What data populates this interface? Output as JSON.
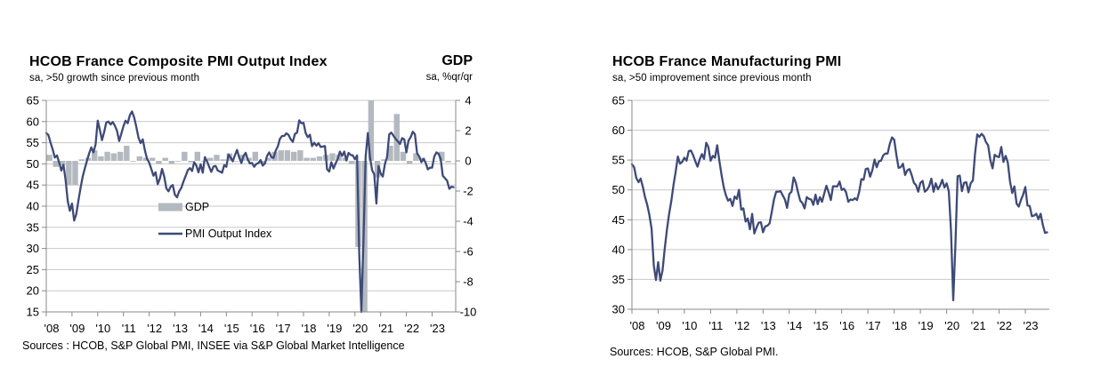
{
  "colors": {
    "line": "#3E4A77",
    "bar": "#B3B9BF",
    "grid": "#C8C8C8",
    "axis": "#898989",
    "text": "#000000",
    "background": "#FFFFFF"
  },
  "charts": [
    {
      "title": "HCOB France Composite PMI Output Index",
      "subtitle": "sa, >50 growth since previous month",
      "right_axis_title": "GDP",
      "right_axis_subtitle": "sa, %qr/qr",
      "sources": "Sources : HCOB, S&P Global PMI, INSEE via S&P Global Market Intelligence",
      "legend": [
        {
          "label": "GDP",
          "swatch": "bar"
        },
        {
          "label": "PMI Output Index",
          "swatch": "line"
        }
      ],
      "chart_data": {
        "type": "line+bar",
        "x_start": "2008-01",
        "x_end": "2023-11",
        "x_tick_labels": [
          "'08",
          "'09",
          "'10",
          "'11",
          "'12",
          "'13",
          "'14",
          "'15",
          "'16",
          "'17",
          "'18",
          "'19",
          "'20",
          "'21",
          "'22",
          "'23"
        ],
        "left_axis": {
          "min": 15,
          "max": 65,
          "step": 5,
          "tick_labels": [
            "15",
            "20",
            "25",
            "30",
            "35",
            "40",
            "45",
            "50",
            "55",
            "60",
            "65"
          ]
        },
        "right_axis": {
          "min": -10,
          "max": 4,
          "step": 2,
          "tick_labels": [
            "-10",
            "-8",
            "-6",
            "-4",
            "-2",
            "0",
            "2",
            "4"
          ]
        },
        "grid": true,
        "series": [
          {
            "name": "GDP",
            "type": "bar",
            "axis": "right",
            "frequency": "quarterly",
            "values": [
              0.4,
              -0.4,
              -0.3,
              -1.6,
              -1.6,
              0.1,
              0.2,
              0.7,
              0.3,
              0.6,
              0.5,
              0.6,
              1.0,
              0.0,
              0.3,
              0.2,
              0.2,
              -0.2,
              0.2,
              -0.2,
              0.0,
              0.6,
              -0.1,
              0.6,
              0.0,
              0.2,
              0.4,
              0.1,
              0.5,
              0.0,
              0.4,
              0.2,
              0.6,
              -0.2,
              0.2,
              0.6,
              0.7,
              0.7,
              0.6,
              0.7,
              0.2,
              0.2,
              0.3,
              0.4,
              0.5,
              0.4,
              0.2,
              -0.2,
              -5.7,
              -13.5,
              18.8,
              -1.1,
              0.1,
              1.0,
              3.1,
              0.6,
              -0.2,
              0.5,
              0.2,
              0.0,
              0.0,
              0.6,
              -0.1
            ]
          },
          {
            "name": "PMI Output Index",
            "type": "line",
            "axis": "left",
            "frequency": "monthly",
            "values": [
              57.3,
              56.8,
              55.0,
              53.4,
              51.5,
              52.0,
              50.3,
              48.4,
              49.8,
              46.2,
              41.2,
              38.9,
              40.6,
              36.6,
              38.1,
              41.3,
              44.3,
              47.0,
              49.0,
              50.8,
              52.5,
              53.9,
              52.7,
              54.6,
              60.2,
              58.0,
              55.6,
              57.5,
              59.8,
              60.0,
              59.3,
              59.9,
              59.0,
              57.8,
              55.4,
              57.1,
              58.9,
              60.2,
              59.6,
              61.5,
              62.4,
              61.0,
              58.7,
              56.2,
              54.9,
              55.8,
              53.2,
              51.2,
              50.3,
              48.8,
              47.2,
              48.0,
              45.2,
              46.5,
              48.8,
              47.0,
              44.2,
              43.5,
              44.6,
              45.0,
              42.7,
              42.1,
              43.5,
              44.3,
              45.8,
              47.1,
              48.5,
              49.0,
              48.3,
              50.4,
              49.6,
              48.0,
              49.9,
              47.9,
              51.6,
              50.6,
              49.3,
              48.1,
              49.4,
              49.5,
              48.4,
              48.2,
              47.9,
              49.7,
              49.3,
              52.2,
              51.5,
              50.6,
              52.0,
              53.3,
              51.5,
              50.2,
              51.9,
              52.6,
              51.0,
              50.1,
              50.2,
              49.3,
              50.0,
              50.2,
              50.9,
              49.6,
              50.1,
              51.9,
              52.7,
              51.6,
              51.4,
              53.1,
              54.1,
              55.9,
              56.6,
              56.6,
              57.2,
              56.9,
              55.8,
              55.2,
              57.1,
              57.4,
              60.3,
              59.6,
              59.7,
              57.3,
              56.3,
              56.9,
              54.2,
              55.0,
              54.3,
              54.9,
              54.0,
              54.1,
              54.2,
              48.7,
              48.2,
              50.4,
              48.9,
              50.1,
              51.2,
              52.9,
              51.9,
              52.9,
              50.8,
              52.6,
              52.1,
              52.0,
              51.1,
              52.0,
              28.9,
              11.1,
              32.1,
              51.7,
              57.3,
              51.6,
              48.5,
              47.5,
              40.6,
              49.5,
              47.7,
              47.0,
              50.0,
              51.6,
              57.0,
              57.4,
              56.6,
              55.9,
              55.3,
              54.7,
              56.1,
              55.8,
              52.7,
              55.5,
              56.3,
              57.6,
              57.0,
              52.5,
              51.7,
              50.4,
              51.2,
              50.2,
              48.7,
              49.1,
              49.1,
              51.7,
              52.7,
              52.4,
              51.2,
              47.2,
              46.6,
              46.0,
              44.1,
              44.6,
              44.5
            ]
          }
        ]
      }
    },
    {
      "title": "HCOB France Manufacturing PMI",
      "subtitle": "sa, >50 improvement since previous month",
      "sources": "Sources: HCOB, S&P Global PMI.",
      "legend": [],
      "chart_data": {
        "type": "line",
        "x_start": "2008-01",
        "x_end": "2023-11",
        "x_tick_labels": [
          "'08",
          "'09",
          "'10",
          "'11",
          "'12",
          "'13",
          "'14",
          "'15",
          "'16",
          "'17",
          "'18",
          "'19",
          "'20",
          "'21",
          "'22",
          "'23"
        ],
        "left_axis": {
          "min": 30,
          "max": 65,
          "step": 5,
          "tick_labels": [
            "30",
            "35",
            "40",
            "45",
            "50",
            "55",
            "60",
            "65"
          ]
        },
        "grid": true,
        "series": [
          {
            "name": "Manufacturing PMI",
            "type": "line",
            "axis": "left",
            "frequency": "monthly",
            "values": [
              54.3,
              53.8,
              52.0,
              51.3,
              51.9,
              50.5,
              48.8,
              47.5,
              45.8,
              43.5,
              37.3,
              34.9,
              37.9,
              34.8,
              36.5,
              40.1,
              43.3,
              45.9,
              48.1,
              50.8,
              53.0,
              55.6,
              54.4,
              54.7,
              55.4,
              54.9,
              56.5,
              56.6,
              55.8,
              54.8,
              53.9,
              55.1,
              56.0,
              55.2,
              57.9,
              57.2,
              54.9,
              55.7,
              55.4,
              57.5,
              54.9,
              52.5,
              50.5,
              49.1,
              48.2,
              48.5,
              47.3,
              48.9,
              48.5,
              50.0,
              46.7,
              46.9,
              44.7,
              45.2,
              43.4,
              46.0,
              42.7,
              43.7,
              44.5,
              44.6,
              42.9,
              43.9,
              44.0,
              44.4,
              46.4,
              48.4,
              49.7,
              49.7,
              49.8,
              49.1,
              48.4,
              47.0,
              49.3,
              49.7,
              52.1,
              51.2,
              49.6,
              48.2,
              47.8,
              46.9,
              48.8,
              48.5,
              48.4,
              47.5,
              49.2,
              47.6,
              48.8,
              48.0,
              49.4,
              50.7,
              49.6,
              48.3,
              50.6,
              50.6,
              50.6,
              51.4,
              50.0,
              50.2,
              49.6,
              48.0,
              48.4,
              48.3,
              48.6,
              48.3,
              49.7,
              51.8,
              51.7,
              53.5,
              53.6,
              52.2,
              53.3,
              55.1,
              53.8,
              54.8,
              54.9,
              55.8,
              56.1,
              56.1,
              57.7,
              58.8,
              58.4,
              55.9,
              53.7,
              53.8,
              54.4,
              52.5,
              53.3,
              53.5,
              52.5,
              51.2,
              50.8,
              49.7,
              51.2,
              51.5,
              49.7,
              50.0,
              50.6,
              51.9,
              49.7,
              51.1,
              50.1,
              50.7,
              51.7,
              50.4,
              51.1,
              49.8,
              43.2,
              31.5,
              40.6,
              52.3,
              52.4,
              49.8,
              51.2,
              51.3,
              49.6,
              51.1,
              51.6,
              56.1,
              59.3,
              58.9,
              59.4,
              59.0,
              58.0,
              57.5,
              55.0,
              53.6,
              55.9,
              55.6,
              55.5,
              57.2,
              54.7,
              55.7,
              54.6,
              51.4,
              49.5,
              50.6,
              47.7,
              47.2,
              48.3,
              49.2,
              50.5,
              47.4,
              47.3,
              45.6,
              45.7,
              46.0,
              45.1,
              46.0,
              44.2,
              42.8,
              42.9
            ]
          }
        ]
      }
    }
  ]
}
